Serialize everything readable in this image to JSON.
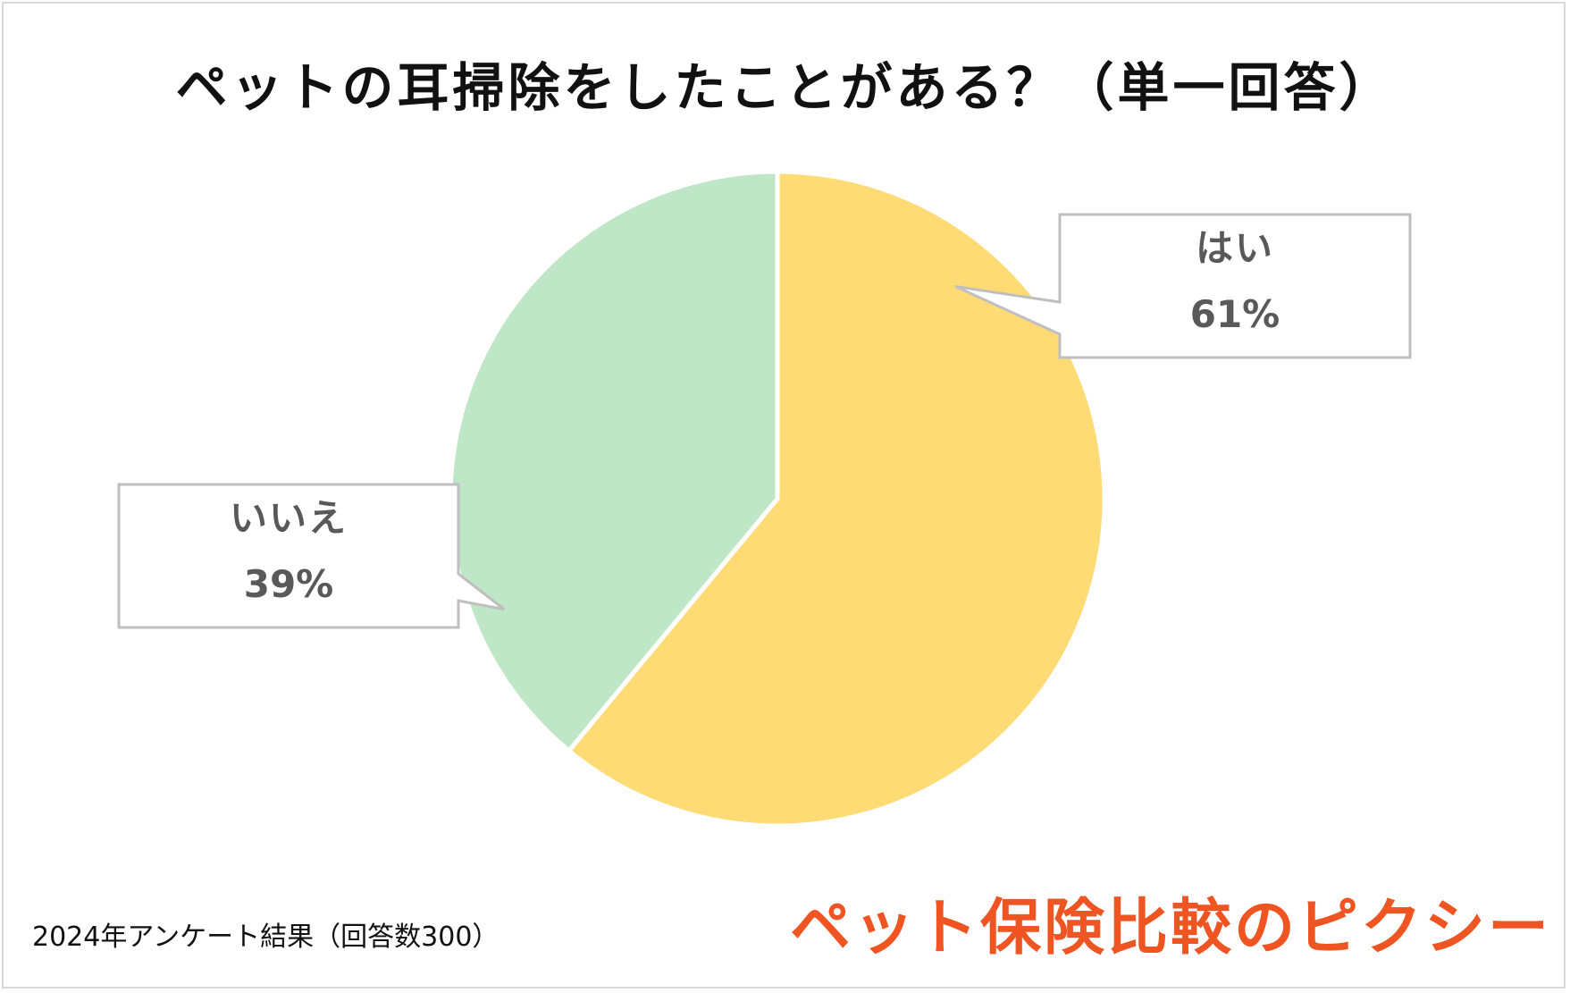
{
  "chart_data": {
    "type": "pie",
    "title": "ペットの耳掃除をしたことがある？（単一回答）",
    "slices": [
      {
        "label": "はい",
        "value": 61,
        "display": "61%",
        "color": "#ffdb75"
      },
      {
        "label": "いいえ",
        "value": 39,
        "display": "39%",
        "color": "#c0e6c8"
      }
    ],
    "start_angle_deg": 0,
    "direction": "clockwise",
    "legend": "none"
  },
  "footnote": "2024年アンケート結果（回答数300）",
  "brand": "ペット保険比較のピクシー",
  "colors": {
    "slice_border": "#ffffff",
    "callout_border": "#bfbfbf",
    "label_text": "#595959",
    "brand": "#ee5522"
  }
}
